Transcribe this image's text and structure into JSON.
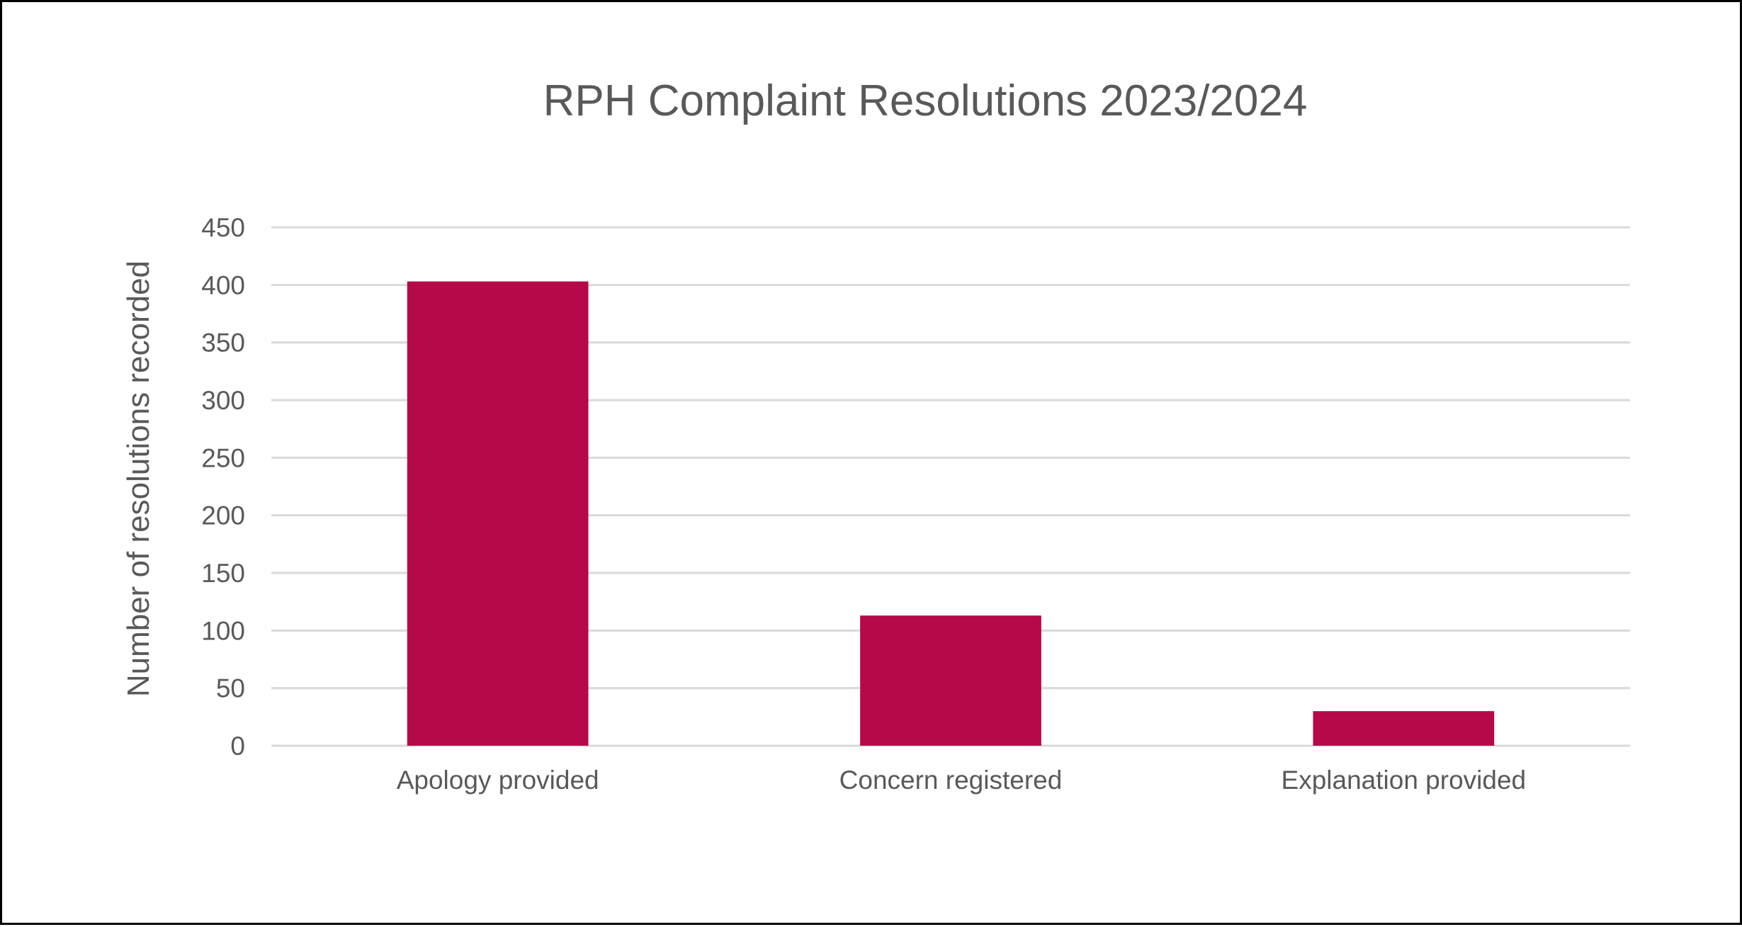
{
  "chart_data": {
    "type": "bar",
    "title": "RPH Complaint Resolutions 2023/2024",
    "xlabel": "",
    "ylabel": "Number of resolutions recorded",
    "categories": [
      "Apology provided",
      "Concern registered",
      "Explanation provided"
    ],
    "values": [
      403,
      113,
      30
    ],
    "ylim": [
      0,
      450
    ],
    "yticks": [
      "0",
      "50",
      "100",
      "150",
      "200",
      "250",
      "300",
      "350",
      "400",
      "450"
    ],
    "grid": true,
    "legend": "none",
    "bar_color": "#B5094A",
    "grid_color": "#D9D9D9",
    "text_color": "#595959"
  }
}
